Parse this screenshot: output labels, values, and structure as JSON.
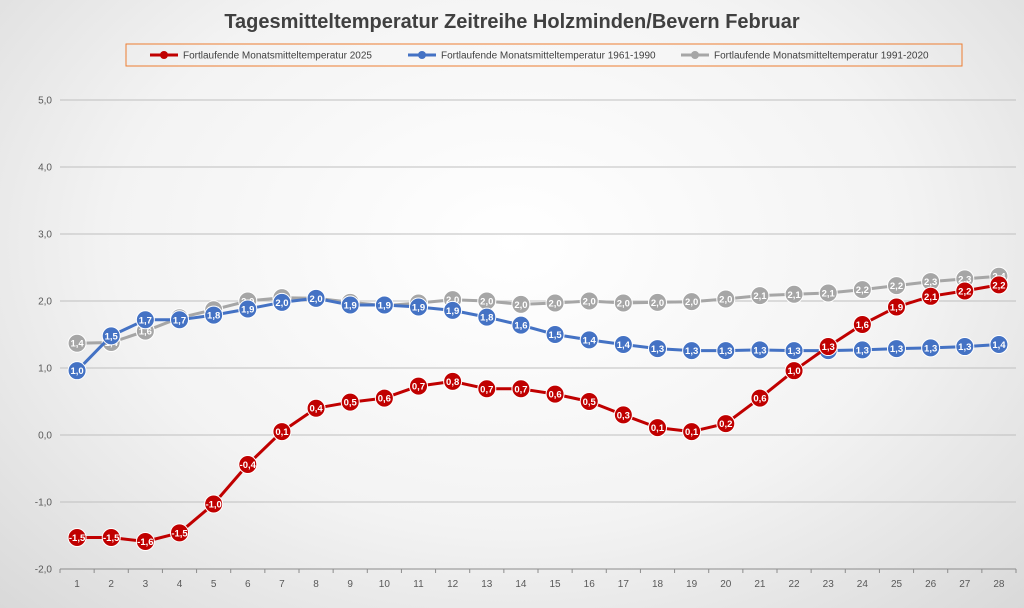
{
  "chart_data": {
    "type": "line",
    "title": "Tagesmitteltemperatur Zeitreihe Holzminden/Bevern Februar",
    "xlabel": "",
    "ylabel": "",
    "ylim": [
      -2.0,
      5.0
    ],
    "ytick_step": 1.0,
    "legend_position": "top",
    "grid": true,
    "categories": [
      "1",
      "2",
      "3",
      "4",
      "5",
      "6",
      "7",
      "8",
      "9",
      "10",
      "11",
      "12",
      "13",
      "14",
      "15",
      "16",
      "17",
      "18",
      "19",
      "20",
      "21",
      "22",
      "23",
      "24",
      "25",
      "26",
      "27",
      "28"
    ],
    "series": [
      {
        "name": "Fortlaufende Monatsmitteltemperatur 1991-2020",
        "color": "#a6a6a6",
        "values": [
          1.37,
          1.38,
          1.55,
          1.75,
          1.87,
          2.0,
          2.05,
          2.04,
          1.98,
          1.93,
          1.97,
          2.02,
          2.0,
          1.95,
          1.97,
          2.0,
          1.97,
          1.98,
          1.99,
          2.03,
          2.08,
          2.1,
          2.12,
          2.17,
          2.23,
          2.29,
          2.33,
          2.37
        ],
        "labels": [
          "1,4",
          "1,4",
          "1,6",
          "1,8",
          "1,9",
          "2,0",
          "2,1",
          "2,0",
          "2,0",
          "1,9",
          "2,0",
          "2,0",
          "2,0",
          "2,0",
          "2,0",
          "2,0",
          "2,0",
          "2,0",
          "2,0",
          "2,0",
          "2,1",
          "2,1",
          "2,1",
          "2,2",
          "2,2",
          "2,3",
          "2,3",
          "2,4"
        ]
      },
      {
        "name": "Fortlaufende Monatsmitteltemperatur 1961-1990",
        "color": "#4472c4",
        "values": [
          0.96,
          1.48,
          1.72,
          1.72,
          1.79,
          1.88,
          1.98,
          2.04,
          1.94,
          1.94,
          1.91,
          1.86,
          1.76,
          1.64,
          1.5,
          1.42,
          1.35,
          1.29,
          1.26,
          1.26,
          1.27,
          1.26,
          1.26,
          1.27,
          1.29,
          1.3,
          1.32,
          1.35
        ],
        "labels": [
          "1,0",
          "1,5",
          "1,7",
          "1,7",
          "1,8",
          "1,9",
          "2,0",
          "2,0",
          "1,9",
          "1,9",
          "1,9",
          "1,9",
          "1,8",
          "1,6",
          "1,5",
          "1,4",
          "1,4",
          "1,3",
          "1,3",
          "1,3",
          "1,3",
          "1,3",
          "1,3",
          "1,3",
          "1,3",
          "1,3",
          "1,3",
          "1,4"
        ]
      },
      {
        "name": "Fortlaufende Monatsmitteltemperatur 2025",
        "color": "#c00000",
        "values": [
          -1.53,
          -1.53,
          -1.59,
          -1.46,
          -1.03,
          -0.44,
          0.05,
          0.4,
          0.49,
          0.55,
          0.73,
          0.8,
          0.69,
          0.69,
          0.61,
          0.5,
          0.3,
          0.11,
          0.05,
          0.17,
          0.55,
          0.96,
          1.32,
          1.65,
          1.91,
          2.07,
          2.15,
          2.24
        ],
        "labels": [
          "-1,5",
          "-1,5",
          "-1,6",
          "-1,5",
          "-1,0",
          "-0,4",
          "0,1",
          "0,4",
          "0,5",
          "0,6",
          "0,7",
          "0,8",
          "0,7",
          "0,7",
          "0,6",
          "0,5",
          "0,3",
          "0,1",
          "0,1",
          "0,2",
          "0,6",
          "1,0",
          "1,3",
          "1,6",
          "1,9",
          "2,1",
          "2,2",
          "2,2"
        ]
      }
    ],
    "y_tick_labels": [
      "-2,0",
      "-1,0",
      "0,0",
      "1,0",
      "2,0",
      "3,0",
      "4,0",
      "5,0"
    ],
    "legend": [
      {
        "label": "Fortlaufende Monatsmitteltemperatur 2025",
        "color": "#c00000"
      },
      {
        "label": "Fortlaufende Monatsmitteltemperatur 1961-1990",
        "color": "#4472c4"
      },
      {
        "label": "Fortlaufende Monatsmitteltemperatur 1991-2020",
        "color": "#a6a6a6"
      }
    ],
    "legend_border_color": "#ed7d31"
  }
}
